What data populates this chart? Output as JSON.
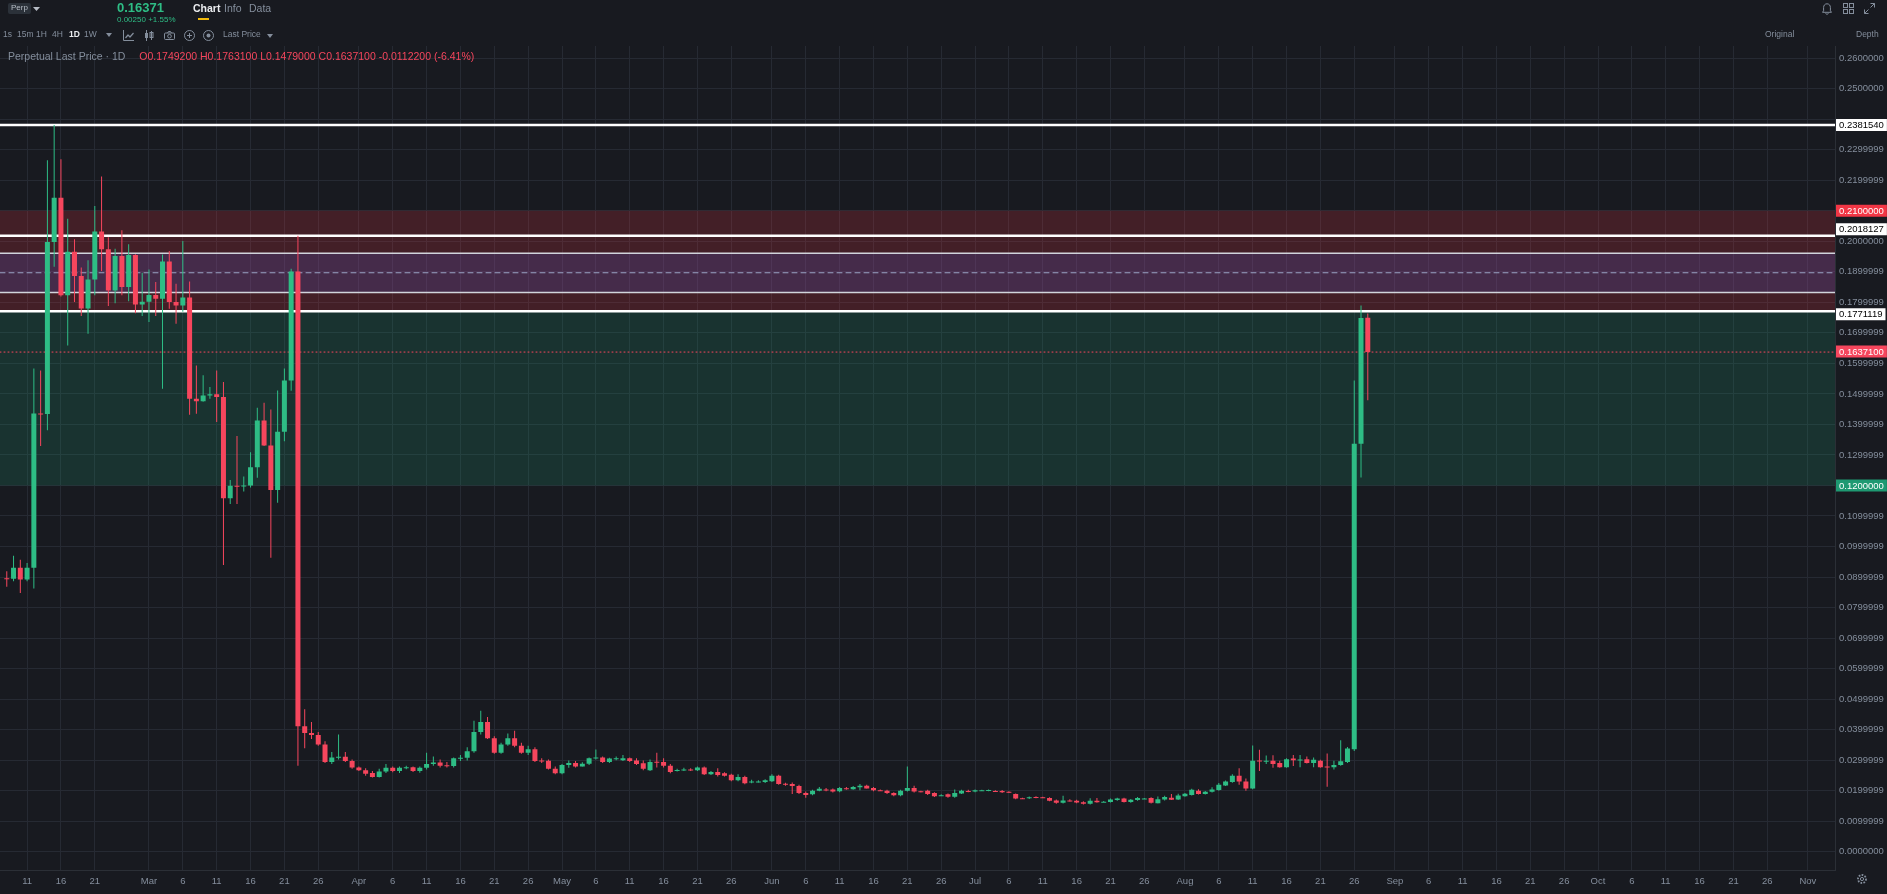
{
  "chart_data": {
    "type": "candlestick",
    "title": "Perpetual Last Price · 1D",
    "annotations": [
      "O0.1749200 H0.1763100 L0.1479000 C0.1637100 -0.0112200 (-6.41%)",
      "Perp",
      "0.16371",
      "0.00250 +1.55%",
      "Chart",
      "Info",
      "Data",
      "1s",
      "15m",
      "1H",
      "4H",
      "1D",
      "1W",
      "Last Price",
      "Original",
      "Depth"
    ],
    "x": [
      "--02-08",
      "--02-09",
      "--02-10",
      "--02-11",
      "--02-12",
      "--02-13",
      "--02-14",
      "--02-15",
      "--02-16",
      "--02-17",
      "--02-18",
      "--02-19",
      "--02-20",
      "--02-21",
      "--02-22",
      "--02-23",
      "--02-24",
      "--02-25",
      "--02-26",
      "--02-27",
      "--02-28",
      "--03-01",
      "--03-02",
      "--03-03",
      "--03-04",
      "--03-05",
      "--03-06",
      "--03-07",
      "--03-08",
      "--03-09",
      "--03-10",
      "--03-11",
      "--03-12",
      "--03-13",
      "--03-14",
      "--03-15",
      "--03-16",
      "--03-17",
      "--03-18",
      "--03-19",
      "--03-20",
      "--03-21",
      "--03-22",
      "--03-23",
      "--03-24",
      "--03-25",
      "--03-26",
      "--03-27",
      "--03-28",
      "--03-29",
      "--03-30",
      "--03-31",
      "--04-01",
      "--04-02",
      "--04-03",
      "--04-04",
      "--04-05",
      "--04-06",
      "--04-07",
      "--04-08",
      "--04-09",
      "--04-10",
      "--04-11",
      "--04-12",
      "--04-13",
      "--04-14",
      "--04-15",
      "--04-16",
      "--04-17",
      "--04-18",
      "--04-19",
      "--04-20",
      "--04-21",
      "--04-22",
      "--04-23",
      "--04-24",
      "--04-25",
      "--04-26",
      "--04-27",
      "--04-28",
      "--04-29",
      "--04-30",
      "--05-01",
      "--05-02",
      "--05-03",
      "--05-04",
      "--05-05",
      "--05-06",
      "--05-07",
      "--05-08",
      "--05-09",
      "--05-10",
      "--05-11",
      "--05-12",
      "--05-13",
      "--05-14",
      "--05-15",
      "--05-16",
      "--05-17",
      "--05-18",
      "--05-19",
      "--05-20",
      "--05-21",
      "--05-22",
      "--05-23",
      "--05-24",
      "--05-25",
      "--05-26",
      "--05-27",
      "--05-28",
      "--05-29",
      "--05-30",
      "--05-31",
      "--06-01",
      "--06-02",
      "--06-03",
      "--06-04",
      "--06-05",
      "--06-06",
      "--06-07",
      "--06-08",
      "--06-09",
      "--06-10",
      "--06-11",
      "--06-12",
      "--06-13",
      "--06-14",
      "--06-15",
      "--06-16",
      "--06-17",
      "--06-18",
      "--06-19",
      "--06-20",
      "--06-21",
      "--06-22",
      "--06-23",
      "--06-24",
      "--06-25",
      "--06-26",
      "--06-27",
      "--06-28",
      "--06-29",
      "--06-30",
      "--07-01",
      "--07-02",
      "--07-03",
      "--07-04",
      "--07-05",
      "--07-06",
      "--07-07",
      "--07-08",
      "--07-09",
      "--07-10",
      "--07-11",
      "--07-12",
      "--07-13",
      "--07-14",
      "--07-15",
      "--07-16",
      "--07-17",
      "--07-18",
      "--07-19",
      "--07-20",
      "--07-21",
      "--07-22",
      "--07-23",
      "--07-24",
      "--07-25",
      "--07-26",
      "--07-27",
      "--07-28",
      "--07-29",
      "--07-30",
      "--07-31",
      "--08-01",
      "--08-02",
      "--08-03",
      "--08-04",
      "--08-05",
      "--08-06",
      "--08-07",
      "--08-08",
      "--08-09",
      "--08-10",
      "--08-11",
      "--08-12",
      "--08-13",
      "--08-14",
      "--08-15",
      "--08-16",
      "--08-17",
      "--08-18",
      "--08-19",
      "--08-20",
      "--08-21",
      "--08-22",
      "--08-23",
      "--08-24",
      "--08-25",
      "--08-26",
      "--08-27",
      "--08-28"
    ],
    "ohlc": [
      [
        0.0896,
        0.0919,
        0.0868,
        0.0894
      ],
      [
        0.0894,
        0.097,
        0.0886,
        0.093
      ],
      [
        0.093,
        0.0957,
        0.0848,
        0.0892
      ],
      [
        0.0892,
        0.0946,
        0.0886,
        0.093
      ],
      [
        0.093,
        0.1583,
        0.0862,
        0.1436
      ],
      [
        0.1436,
        0.1577,
        0.1329,
        0.1434
      ],
      [
        0.1434,
        0.2266,
        0.1381,
        0.1998
      ],
      [
        0.1998,
        0.2381,
        0.1917,
        0.2143
      ],
      [
        0.2143,
        0.2269,
        0.1819,
        0.1823
      ],
      [
        0.1823,
        0.2074,
        0.1659,
        0.1966
      ],
      [
        0.1966,
        0.2007,
        0.1801,
        0.1886
      ],
      [
        0.1886,
        0.1914,
        0.1755,
        0.178
      ],
      [
        0.178,
        0.1938,
        0.1697,
        0.1875
      ],
      [
        0.1875,
        0.2116,
        0.1823,
        0.2032
      ],
      [
        0.2032,
        0.2212,
        0.1903,
        0.1974
      ],
      [
        0.1974,
        0.2013,
        0.1788,
        0.1839
      ],
      [
        0.1839,
        0.1976,
        0.1797,
        0.1952
      ],
      [
        0.1952,
        0.2036,
        0.1823,
        0.185
      ],
      [
        0.185,
        0.199,
        0.1804,
        0.1955
      ],
      [
        0.1955,
        0.1958,
        0.1764,
        0.1793
      ],
      [
        0.1793,
        0.1897,
        0.1755,
        0.1802
      ],
      [
        0.1802,
        0.1908,
        0.1736,
        0.1824
      ],
      [
        0.1824,
        0.1867,
        0.1755,
        0.1812
      ],
      [
        0.1812,
        0.1957,
        0.1517,
        0.1934
      ],
      [
        0.1934,
        0.1968,
        0.1779,
        0.1801
      ],
      [
        0.1801,
        0.1861,
        0.173,
        0.179
      ],
      [
        0.179,
        0.2001,
        0.1769,
        0.1816
      ],
      [
        0.1816,
        0.1868,
        0.1432,
        0.1484
      ],
      [
        0.1484,
        0.1593,
        0.1435,
        0.1476
      ],
      [
        0.1476,
        0.1561,
        0.1474,
        0.1495
      ],
      [
        0.1495,
        0.1523,
        0.1484,
        0.1499
      ],
      [
        0.1499,
        0.1577,
        0.1408,
        0.149
      ],
      [
        0.149,
        0.1539,
        0.0939,
        0.1158
      ],
      [
        0.1158,
        0.1218,
        0.1139,
        0.1199
      ],
      [
        0.1199,
        0.1362,
        0.1139,
        0.1197
      ],
      [
        0.1197,
        0.1229,
        0.118,
        0.12
      ],
      [
        0.12,
        0.1309,
        0.1193,
        0.126
      ],
      [
        0.126,
        0.1455,
        0.1225,
        0.1413
      ],
      [
        0.1413,
        0.1471,
        0.1329,
        0.1331
      ],
      [
        0.1331,
        0.1449,
        0.0963,
        0.1185
      ],
      [
        0.1185,
        0.1511,
        0.1143,
        0.1376
      ],
      [
        0.1376,
        0.1583,
        0.1345,
        0.1544
      ],
      [
        0.1544,
        0.191,
        0.151,
        0.1901
      ],
      [
        0.1901,
        0.2018,
        0.0282,
        0.0411
      ],
      [
        0.0411,
        0.0467,
        0.0339,
        0.0389
      ],
      [
        0.0389,
        0.0425,
        0.0369,
        0.0382
      ],
      [
        0.0382,
        0.0392,
        0.0347,
        0.0351
      ],
      [
        0.0351,
        0.0362,
        0.0291,
        0.0294
      ],
      [
        0.0294,
        0.0327,
        0.0287,
        0.0309
      ],
      [
        0.0309,
        0.0384,
        0.0302,
        0.0311
      ],
      [
        0.0311,
        0.0327,
        0.0294,
        0.0297
      ],
      [
        0.0297,
        0.0302,
        0.0272,
        0.0276
      ],
      [
        0.0276,
        0.0279,
        0.0264,
        0.0267
      ],
      [
        0.0267,
        0.0273,
        0.0249,
        0.0255
      ],
      [
        0.0258,
        0.0264,
        0.0243,
        0.0245
      ],
      [
        0.0245,
        0.0272,
        0.0243,
        0.0263
      ],
      [
        0.0263,
        0.0287,
        0.0258,
        0.0275
      ],
      [
        0.0275,
        0.0279,
        0.026,
        0.0264
      ],
      [
        0.0264,
        0.0279,
        0.0258,
        0.0275
      ],
      [
        0.0275,
        0.0282,
        0.027,
        0.0277
      ],
      [
        0.0277,
        0.0279,
        0.0261,
        0.0264
      ],
      [
        0.0264,
        0.0279,
        0.0259,
        0.0275
      ],
      [
        0.0275,
        0.0324,
        0.0269,
        0.0287
      ],
      [
        0.0287,
        0.0312,
        0.0282,
        0.0292
      ],
      [
        0.0292,
        0.0302,
        0.0276,
        0.0282
      ],
      [
        0.0283,
        0.0294,
        0.0276,
        0.0281
      ],
      [
        0.0281,
        0.0309,
        0.0276,
        0.0306
      ],
      [
        0.0306,
        0.0317,
        0.0297,
        0.0308
      ],
      [
        0.0308,
        0.0342,
        0.0299,
        0.0329
      ],
      [
        0.0329,
        0.0429,
        0.0324,
        0.0392
      ],
      [
        0.0392,
        0.0462,
        0.0384,
        0.0425
      ],
      [
        0.0425,
        0.0441,
        0.0369,
        0.0372
      ],
      [
        0.0372,
        0.0378,
        0.0321,
        0.0324
      ],
      [
        0.0324,
        0.0357,
        0.0321,
        0.0351
      ],
      [
        0.0351,
        0.0387,
        0.0347,
        0.0372
      ],
      [
        0.0372,
        0.0396,
        0.0342,
        0.0347
      ],
      [
        0.0347,
        0.0357,
        0.0321,
        0.0324
      ],
      [
        0.0324,
        0.0347,
        0.0317,
        0.0336
      ],
      [
        0.0336,
        0.0342,
        0.0294,
        0.0297
      ],
      [
        0.0299,
        0.0306,
        0.0291,
        0.0298
      ],
      [
        0.0298,
        0.0302,
        0.0269,
        0.0272
      ],
      [
        0.0272,
        0.0279,
        0.0254,
        0.0257
      ],
      [
        0.0257,
        0.0287,
        0.0254,
        0.0284
      ],
      [
        0.0284,
        0.0299,
        0.0275,
        0.0291
      ],
      [
        0.0291,
        0.0297,
        0.0276,
        0.0279
      ],
      [
        0.0279,
        0.0293,
        0.0278,
        0.0288
      ],
      [
        0.0288,
        0.0309,
        0.0284,
        0.0306
      ],
      [
        0.0306,
        0.0335,
        0.0302,
        0.0309
      ],
      [
        0.0309,
        0.0312,
        0.0291,
        0.0294
      ],
      [
        0.0294,
        0.0308,
        0.0291,
        0.0305
      ],
      [
        0.0304,
        0.0312,
        0.03,
        0.0306
      ],
      [
        0.03,
        0.0317,
        0.0297,
        0.0306
      ],
      [
        0.0306,
        0.0309,
        0.0294,
        0.0297
      ],
      [
        0.0299,
        0.0306,
        0.0284,
        0.0287
      ],
      [
        0.029,
        0.0299,
        0.0267,
        0.0272
      ],
      [
        0.0267,
        0.0302,
        0.0264,
        0.0294
      ],
      [
        0.0295,
        0.0324,
        0.0276,
        0.0293
      ],
      [
        0.0294,
        0.0306,
        0.0276,
        0.0282
      ],
      [
        0.0282,
        0.0287,
        0.0257,
        0.0261
      ],
      [
        0.0266,
        0.0272,
        0.0263,
        0.0268
      ],
      [
        0.0267,
        0.0275,
        0.0264,
        0.0269
      ],
      [
        0.0269,
        0.0273,
        0.0264,
        0.0267
      ],
      [
        0.0267,
        0.0279,
        0.0264,
        0.0276
      ],
      [
        0.0276,
        0.0279,
        0.0251,
        0.0254
      ],
      [
        0.0254,
        0.0264,
        0.0251,
        0.0261
      ],
      [
        0.0261,
        0.0273,
        0.0246,
        0.0251
      ],
      [
        0.0257,
        0.026,
        0.0246,
        0.0249
      ],
      [
        0.0252,
        0.0255,
        0.0231,
        0.0234
      ],
      [
        0.0234,
        0.0254,
        0.0231,
        0.0245
      ],
      [
        0.0245,
        0.0249,
        0.0221,
        0.0224
      ],
      [
        0.0229,
        0.0236,
        0.0224,
        0.023
      ],
      [
        0.0229,
        0.0234,
        0.0226,
        0.023
      ],
      [
        0.0228,
        0.0237,
        0.0225,
        0.0234
      ],
      [
        0.0231,
        0.0254,
        0.0228,
        0.0249
      ],
      [
        0.0249,
        0.0252,
        0.0219,
        0.0222
      ],
      [
        0.0223,
        0.0226,
        0.0216,
        0.0221
      ],
      [
        0.0222,
        0.0227,
        0.0189,
        0.0215
      ],
      [
        0.0215,
        0.0219,
        0.0189,
        0.0192
      ],
      [
        0.0192,
        0.0197,
        0.0177,
        0.0186
      ],
      [
        0.0188,
        0.0203,
        0.0185,
        0.02
      ],
      [
        0.02,
        0.0212,
        0.0198,
        0.0206
      ],
      [
        0.0204,
        0.0209,
        0.0198,
        0.0202
      ],
      [
        0.0204,
        0.0207,
        0.0194,
        0.0197
      ],
      [
        0.0198,
        0.0212,
        0.0195,
        0.0209
      ],
      [
        0.0208,
        0.0212,
        0.0203,
        0.0206
      ],
      [
        0.0205,
        0.0215,
        0.0203,
        0.0212
      ],
      [
        0.0211,
        0.0222,
        0.0201,
        0.0216
      ],
      [
        0.0216,
        0.0219,
        0.0206,
        0.0207
      ],
      [
        0.0209,
        0.0212,
        0.0198,
        0.0201
      ],
      [
        0.0201,
        0.0204,
        0.0198,
        0.02
      ],
      [
        0.02,
        0.0203,
        0.0189,
        0.0192
      ],
      [
        0.0192,
        0.0195,
        0.0182,
        0.0185
      ],
      [
        0.0185,
        0.0203,
        0.0182,
        0.02
      ],
      [
        0.02,
        0.0279,
        0.0197,
        0.0209
      ],
      [
        0.0209,
        0.0216,
        0.0194,
        0.0197
      ],
      [
        0.0198,
        0.02,
        0.0194,
        0.0197
      ],
      [
        0.02,
        0.0203,
        0.0186,
        0.0189
      ],
      [
        0.0192,
        0.0195,
        0.0179,
        0.0182
      ],
      [
        0.0184,
        0.0188,
        0.0182,
        0.0185
      ],
      [
        0.0188,
        0.0191,
        0.0177,
        0.018
      ],
      [
        0.018,
        0.0204,
        0.0177,
        0.0192
      ],
      [
        0.0191,
        0.0203,
        0.0189,
        0.02
      ],
      [
        0.0199,
        0.0203,
        0.0195,
        0.0197
      ],
      [
        0.0197,
        0.0204,
        0.0195,
        0.0201
      ],
      [
        0.02,
        0.0203,
        0.0198,
        0.0201
      ],
      [
        0.02,
        0.0204,
        0.0198,
        0.0202
      ],
      [
        0.0199,
        0.0201,
        0.0196,
        0.0198
      ],
      [
        0.0199,
        0.0202,
        0.0192,
        0.0195
      ],
      [
        0.0196,
        0.0198,
        0.0192,
        0.0194
      ],
      [
        0.0189,
        0.0191,
        0.0172,
        0.0174
      ],
      [
        0.0175,
        0.0177,
        0.0172,
        0.0174
      ],
      [
        0.0175,
        0.0181,
        0.0173,
        0.0178
      ],
      [
        0.0179,
        0.0182,
        0.0175,
        0.0178
      ],
      [
        0.0178,
        0.018,
        0.0175,
        0.0177
      ],
      [
        0.0176,
        0.0178,
        0.0165,
        0.0167
      ],
      [
        0.0168,
        0.0171,
        0.0157,
        0.016
      ],
      [
        0.016,
        0.0183,
        0.0158,
        0.0168
      ],
      [
        0.0168,
        0.0172,
        0.0164,
        0.0167
      ],
      [
        0.0167,
        0.017,
        0.0159,
        0.0161
      ],
      [
        0.0162,
        0.0165,
        0.0155,
        0.0157
      ],
      [
        0.0157,
        0.0175,
        0.0155,
        0.0167
      ],
      [
        0.0167,
        0.0176,
        0.016,
        0.0162
      ],
      [
        0.0163,
        0.0166,
        0.0161,
        0.0164
      ],
      [
        0.0163,
        0.0174,
        0.0161,
        0.0171
      ],
      [
        0.0169,
        0.0177,
        0.0167,
        0.0174
      ],
      [
        0.0174,
        0.0177,
        0.0161,
        0.0163
      ],
      [
        0.0163,
        0.0173,
        0.016,
        0.017
      ],
      [
        0.0169,
        0.0179,
        0.0167,
        0.0176
      ],
      [
        0.0173,
        0.0176,
        0.0172,
        0.0174
      ],
      [
        0.0176,
        0.0178,
        0.0158,
        0.016
      ],
      [
        0.0159,
        0.0181,
        0.0158,
        0.0172
      ],
      [
        0.0171,
        0.0183,
        0.0168,
        0.0179
      ],
      [
        0.0177,
        0.0189,
        0.0169,
        0.017
      ],
      [
        0.0171,
        0.019,
        0.0169,
        0.0184
      ],
      [
        0.0182,
        0.0192,
        0.018,
        0.019
      ],
      [
        0.0186,
        0.0206,
        0.0184,
        0.0203
      ],
      [
        0.02,
        0.0205,
        0.0187,
        0.0189
      ],
      [
        0.0189,
        0.0199,
        0.0187,
        0.0196
      ],
      [
        0.0196,
        0.0211,
        0.0194,
        0.0204
      ],
      [
        0.0202,
        0.0225,
        0.02,
        0.0219
      ],
      [
        0.0217,
        0.0233,
        0.0215,
        0.023
      ],
      [
        0.0228,
        0.0254,
        0.0226,
        0.0249
      ],
      [
        0.0249,
        0.0273,
        0.0219,
        0.023
      ],
      [
        0.023,
        0.024,
        0.02,
        0.0207
      ],
      [
        0.0207,
        0.0348,
        0.0205,
        0.0298
      ],
      [
        0.0299,
        0.0334,
        0.0264,
        0.0297
      ],
      [
        0.0296,
        0.0315,
        0.0287,
        0.0298
      ],
      [
        0.0298,
        0.0316,
        0.0275,
        0.0287
      ],
      [
        0.0291,
        0.0298,
        0.0275,
        0.0277
      ],
      [
        0.0277,
        0.0306,
        0.0275,
        0.0303
      ],
      [
        0.0305,
        0.0317,
        0.0281,
        0.03
      ],
      [
        0.03,
        0.0317,
        0.0277,
        0.0302
      ],
      [
        0.0303,
        0.0312,
        0.0289,
        0.0291
      ],
      [
        0.0291,
        0.0309,
        0.0277,
        0.0301
      ],
      [
        0.0298,
        0.0301,
        0.0275,
        0.0277
      ],
      [
        0.0279,
        0.0322,
        0.0213,
        0.0277
      ],
      [
        0.0277,
        0.0298,
        0.0269,
        0.0284
      ],
      [
        0.0284,
        0.0365,
        0.0282,
        0.0296
      ],
      [
        0.0294,
        0.0343,
        0.0291,
        0.0338
      ],
      [
        0.0336,
        0.1544,
        0.033,
        0.1337
      ],
      [
        0.1337,
        0.179,
        0.1226,
        0.1749
      ],
      [
        0.17492,
        0.17631,
        0.1479,
        0.16371
      ]
    ],
    "colors": [
      "#f6465d",
      "#2ebd85",
      "#f6465d",
      "#2ebd85",
      "#2ebd85",
      "#f6465d",
      "#2ebd85",
      "#2ebd85",
      "#f6465d",
      "#2ebd85",
      "#f6465d",
      "#f6465d",
      "#2ebd85",
      "#2ebd85",
      "#f6465d",
      "#f6465d",
      "#2ebd85",
      "#f6465d",
      "#2ebd85",
      "#f6465d",
      "#2ebd85",
      "#2ebd85",
      "#f6465d",
      "#2ebd85",
      "#f6465d",
      "#f6465d",
      "#2ebd85",
      "#f6465d",
      "#f6465d",
      "#2ebd85",
      "#2ebd85",
      "#f6465d",
      "#f6465d",
      "#2ebd85",
      "#f6465d",
      "#2ebd85",
      "#2ebd85",
      "#2ebd85",
      "#f6465d",
      "#f6465d",
      "#2ebd85",
      "#2ebd85",
      "#2ebd85",
      "#f6465d",
      "#f6465d",
      "#f6465d",
      "#f6465d",
      "#f6465d",
      "#2ebd85",
      "#2ebd85",
      "#f6465d",
      "#f6465d",
      "#f6465d",
      "#f6465d",
      "#f6465d",
      "#2ebd85",
      "#2ebd85",
      "#f6465d",
      "#2ebd85",
      "#2ebd85",
      "#f6465d",
      "#2ebd85",
      "#2ebd85",
      "#2ebd85",
      "#f6465d",
      "#f6465d",
      "#2ebd85",
      "#2ebd85",
      "#2ebd85",
      "#2ebd85",
      "#2ebd85",
      "#f6465d",
      "#f6465d",
      "#2ebd85",
      "#2ebd85",
      "#f6465d",
      "#f6465d",
      "#2ebd85",
      "#f6465d",
      "#f6465d",
      "#f6465d",
      "#f6465d",
      "#2ebd85",
      "#2ebd85",
      "#f6465d",
      "#2ebd85",
      "#2ebd85",
      "#2ebd85",
      "#f6465d",
      "#2ebd85",
      "#2ebd85",
      "#2ebd85",
      "#f6465d",
      "#f6465d",
      "#f6465d",
      "#2ebd85",
      "#f6465d",
      "#f6465d",
      "#f6465d",
      "#2ebd85",
      "#2ebd85",
      "#f6465d",
      "#2ebd85",
      "#f6465d",
      "#2ebd85",
      "#f6465d",
      "#f6465d",
      "#f6465d",
      "#2ebd85",
      "#f6465d",
      "#2ebd85",
      "#2ebd85",
      "#2ebd85",
      "#2ebd85",
      "#f6465d",
      "#f6465d",
      "#f6465d",
      "#f6465d",
      "#f6465d",
      "#2ebd85",
      "#2ebd85",
      "#f6465d",
      "#f6465d",
      "#2ebd85",
      "#f6465d",
      "#2ebd85",
      "#2ebd85",
      "#f6465d",
      "#f6465d",
      "#f6465d",
      "#f6465d",
      "#f6465d",
      "#2ebd85",
      "#2ebd85",
      "#f6465d",
      "#f6465d",
      "#f6465d",
      "#f6465d",
      "#2ebd85",
      "#f6465d",
      "#2ebd85",
      "#2ebd85",
      "#f6465d",
      "#2ebd85",
      "#2ebd85",
      "#2ebd85",
      "#f6465d",
      "#f6465d",
      "#f6465d",
      "#f6465d",
      "#f6465d",
      "#2ebd85",
      "#f6465d",
      "#f6465d",
      "#f6465d",
      "#f6465d",
      "#2ebd85",
      "#f6465d",
      "#f6465d",
      "#f6465d",
      "#2ebd85",
      "#f6465d",
      "#2ebd85",
      "#2ebd85",
      "#2ebd85",
      "#f6465d",
      "#2ebd85",
      "#2ebd85",
      "#2ebd85",
      "#f6465d",
      "#2ebd85",
      "#2ebd85",
      "#f6465d",
      "#2ebd85",
      "#2ebd85",
      "#2ebd85",
      "#f6465d",
      "#2ebd85",
      "#2ebd85",
      "#2ebd85",
      "#2ebd85",
      "#2ebd85",
      "#f6465d",
      "#f6465d",
      "#2ebd85",
      "#f6465d",
      "#2ebd85",
      "#f6465d",
      "#f6465d",
      "#2ebd85",
      "#f6465d",
      "#2ebd85",
      "#f6465d",
      "#2ebd85",
      "#f6465d",
      "#f6465d",
      "#2ebd85",
      "#2ebd85",
      "#2ebd85",
      "#2ebd85",
      "#2ebd85",
      "#f6465d"
    ],
    "xlim": [
      "--02-07",
      "--11-05"
    ],
    "xticks": [
      {
        "value": "--02-11",
        "label": "11"
      },
      {
        "value": "--02-16",
        "label": "16"
      },
      {
        "value": "--02-21",
        "label": "21"
      },
      {
        "value": "--03-01",
        "label": "Mar"
      },
      {
        "value": "--03-06",
        "label": "6"
      },
      {
        "value": "--03-11",
        "label": "11"
      },
      {
        "value": "--03-16",
        "label": "16"
      },
      {
        "value": "--03-21",
        "label": "21"
      },
      {
        "value": "--03-26",
        "label": "26"
      },
      {
        "value": "--04-01",
        "label": "Apr"
      },
      {
        "value": "--04-06",
        "label": "6"
      },
      {
        "value": "--04-11",
        "label": "11"
      },
      {
        "value": "--04-16",
        "label": "16"
      },
      {
        "value": "--04-21",
        "label": "21"
      },
      {
        "value": "--04-26",
        "label": "26"
      },
      {
        "value": "--05-01",
        "label": "May"
      },
      {
        "value": "--05-06",
        "label": "6"
      },
      {
        "value": "--05-11",
        "label": "11"
      },
      {
        "value": "--05-16",
        "label": "16"
      },
      {
        "value": "--05-21",
        "label": "21"
      },
      {
        "value": "--05-26",
        "label": "26"
      },
      {
        "value": "--06-01",
        "label": "Jun"
      },
      {
        "value": "--06-06",
        "label": "6"
      },
      {
        "value": "--06-11",
        "label": "11"
      },
      {
        "value": "--06-16",
        "label": "16"
      },
      {
        "value": "--06-21",
        "label": "21"
      },
      {
        "value": "--06-26",
        "label": "26"
      },
      {
        "value": "--07-01",
        "label": "Jul"
      },
      {
        "value": "--07-06",
        "label": "6"
      },
      {
        "value": "--07-11",
        "label": "11"
      },
      {
        "value": "--07-16",
        "label": "16"
      },
      {
        "value": "--07-21",
        "label": "21"
      },
      {
        "value": "--07-26",
        "label": "26"
      },
      {
        "value": "--08-01",
        "label": "Aug"
      },
      {
        "value": "--08-06",
        "label": "6"
      },
      {
        "value": "--08-11",
        "label": "11"
      },
      {
        "value": "--08-16",
        "label": "16"
      },
      {
        "value": "--08-21",
        "label": "21"
      },
      {
        "value": "--08-26",
        "label": "26"
      },
      {
        "value": "--09-01",
        "label": "Sep"
      },
      {
        "value": "--09-06",
        "label": "6"
      },
      {
        "value": "--09-11",
        "label": "11"
      },
      {
        "value": "--09-16",
        "label": "16"
      },
      {
        "value": "--09-21",
        "label": "21"
      },
      {
        "value": "--09-26",
        "label": "26"
      },
      {
        "value": "--10-01",
        "label": "Oct"
      },
      {
        "value": "--10-06",
        "label": "6"
      },
      {
        "value": "--10-11",
        "label": "11"
      },
      {
        "value": "--10-16",
        "label": "16"
      },
      {
        "value": "--10-21",
        "label": "21"
      },
      {
        "value": "--10-26",
        "label": "26"
      },
      {
        "value": "--11-01",
        "label": "Nov"
      }
    ],
    "ylim": [
      -0.006,
      0.264
    ],
    "yticks": [
      {
        "value": 0,
        "label": "0.0000000"
      },
      {
        "value": 0.0099999,
        "label": "0.0099999"
      },
      {
        "value": 0.0199999,
        "label": "0.0199999"
      },
      {
        "value": 0.0299999,
        "label": "0.0299999"
      },
      {
        "value": 0.0399999,
        "label": "0.0399999"
      },
      {
        "value": 0.0499999,
        "label": "0.0499999"
      },
      {
        "value": 0.0599999,
        "label": "0.0599999"
      },
      {
        "value": 0.0699999,
        "label": "0.0699999"
      },
      {
        "value": 0.0799999,
        "label": "0.0799999"
      },
      {
        "value": 0.0899999,
        "label": "0.0899999"
      },
      {
        "value": 0.0999999,
        "label": "0.0999999"
      },
      {
        "value": 0.1099999,
        "label": "0.1099999"
      },
      {
        "value": 0.12,
        "label": null
      },
      {
        "value": 0.1299999,
        "label": "0.1299999"
      },
      {
        "value": 0.1399999,
        "label": "0.1399999"
      },
      {
        "value": 0.1499999,
        "label": "0.1499999"
      },
      {
        "value": 0.1599999,
        "label": "0.1599999"
      },
      {
        "value": 0.1699999,
        "label": "0.1699999"
      },
      {
        "value": 0.1799999,
        "label": "0.1799999"
      },
      {
        "value": 0.1899999,
        "label": "0.1899999"
      },
      {
        "value": 0.2,
        "label": "0.2000000"
      },
      {
        "value": 0.21,
        "label": null
      },
      {
        "value": 0.2199999,
        "label": "0.2199999"
      },
      {
        "value": 0.2299999,
        "label": "0.2299999"
      },
      {
        "value": 0.24,
        "label": null
      },
      {
        "value": 0.25,
        "label": "0.2500000"
      },
      {
        "value": 0.26,
        "label": "0.2600000"
      }
    ],
    "ref_lines": [
      {
        "axis": "y",
        "value": 0.238154,
        "label": "0.2381540",
        "color": "#ffffff"
      },
      {
        "axis": "y",
        "value": 0.2018127,
        "label": "0.2018127",
        "color": "#ffffff"
      },
      {
        "axis": "y",
        "value": 0.1771119,
        "label": "0.1771119",
        "color": "#ffffff"
      },
      {
        "axis": "y",
        "value": 0.1961,
        "color": "#d1d4dc"
      },
      {
        "axis": "y",
        "value": 0.1832,
        "color": "#d1d4dc"
      },
      {
        "axis": "y",
        "value": 0.1897,
        "color": "#9aa3c4",
        "line_style": "dashed"
      },
      {
        "axis": "y",
        "value": 0.16371,
        "label": "0.1637100",
        "color": "#f6465d",
        "line_style": "dotted"
      }
    ],
    "bands": [
      {
        "axis": "y",
        "from": 0.1832,
        "to": 0.1961,
        "color": "#2962ff"
      },
      {
        "axis": "y",
        "from": 0.1771119,
        "to": 0.21,
        "label": "0.2100000",
        "color": "#f23645"
      },
      {
        "axis": "y",
        "from": 0.1771119,
        "to": 0.12,
        "label": "0.1200000",
        "color": "#1e9972"
      }
    ],
    "grid": true
  }
}
